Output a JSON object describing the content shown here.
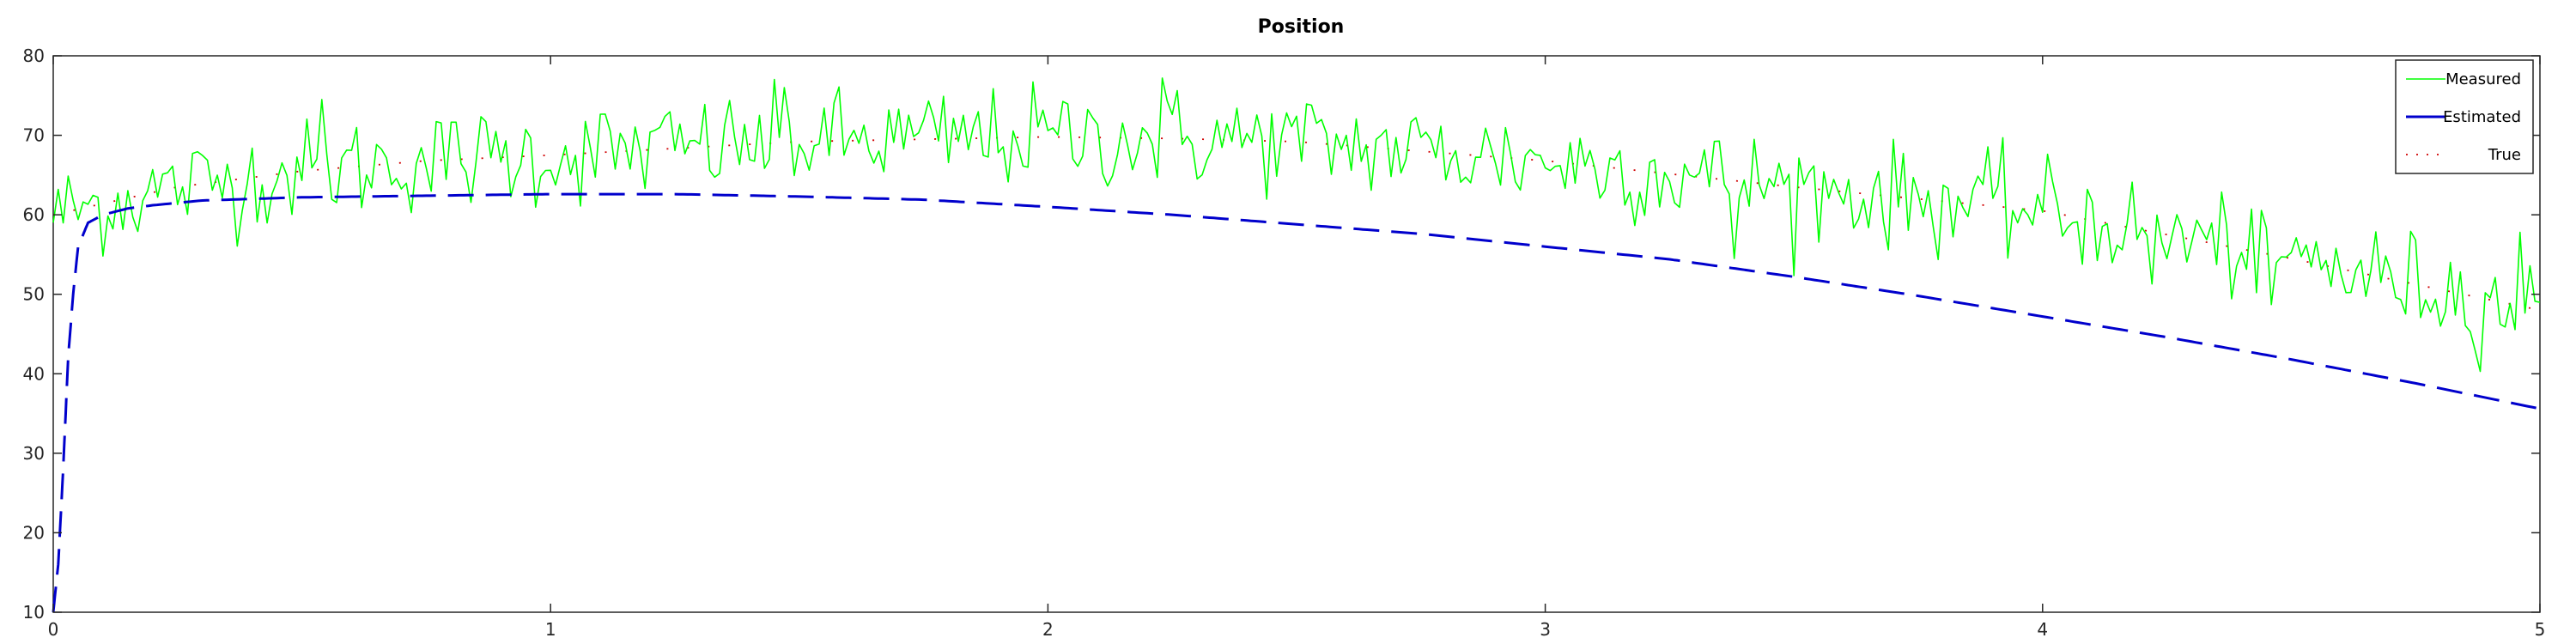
{
  "chart_data": {
    "type": "line",
    "title": "Position",
    "xlabel": "",
    "ylabel": "",
    "xlim": [
      0,
      5
    ],
    "ylim": [
      10,
      80
    ],
    "xticks": [
      0,
      1,
      2,
      3,
      4,
      5
    ],
    "yticks": [
      10,
      20,
      30,
      40,
      50,
      60,
      70,
      80
    ],
    "grid": false,
    "legend": {
      "placement": "top-right"
    },
    "series": [
      {
        "name": "Measured",
        "color": "#00ff00",
        "style": "solid",
        "curve": {
          "x": [
            0,
            0.25,
            0.5,
            0.75,
            1.0,
            1.5,
            2.0,
            2.25,
            2.5,
            3.0,
            3.5,
            4.0,
            4.5,
            5.0
          ],
          "y": [
            60,
            63.5,
            65.5,
            66.8,
            67.5,
            69.2,
            69.8,
            69.6,
            69.2,
            66.8,
            63.5,
            60.5,
            54.5,
            48.0
          ]
        },
        "noise_sd": 3.2,
        "samples": 500,
        "spikes": [
          [
            0.54,
            74.5
          ],
          [
            1.47,
            76
          ],
          [
            2.23,
            77.2
          ],
          [
            3.38,
            54.5
          ],
          [
            4.22,
            51.3
          ],
          [
            4.46,
            48.7
          ],
          [
            4.86,
            45.3
          ],
          [
            4.96,
            57.8
          ]
        ]
      },
      {
        "name": "Estimated",
        "color": "#0000cc",
        "style": "dashed",
        "curve": {
          "x": [
            0,
            0.01,
            0.02,
            0.03,
            0.04,
            0.05,
            0.07,
            0.1,
            0.15,
            0.2,
            0.3,
            0.5,
            0.75,
            1.0,
            1.25,
            1.5,
            1.75,
            2.0,
            2.25,
            2.5,
            2.75,
            3.0,
            3.25,
            3.5,
            3.75,
            4.0,
            4.25,
            4.5,
            4.75,
            5.0
          ],
          "y": [
            10,
            16,
            28,
            42,
            50,
            56,
            59,
            60,
            60.8,
            61.2,
            61.8,
            62.2,
            62.4,
            62.6,
            62.6,
            62.3,
            61.9,
            61.0,
            60.0,
            58.8,
            57.6,
            56.0,
            54.4,
            52.2,
            49.8,
            47.2,
            44.6,
            41.8,
            38.8,
            35.6
          ]
        }
      },
      {
        "name": "True",
        "color": "#d00000",
        "style": "dotted",
        "curve": {
          "x": [
            0,
            0.25,
            0.5,
            0.75,
            1.0,
            1.5,
            2.0,
            2.25,
            2.5,
            3.0,
            3.5,
            4.0,
            4.5,
            5.0
          ],
          "y": [
            60,
            63.5,
            65.5,
            66.8,
            67.5,
            69.2,
            69.8,
            69.6,
            69.2,
            66.8,
            63.5,
            60.5,
            54.5,
            48.0
          ]
        }
      }
    ]
  }
}
